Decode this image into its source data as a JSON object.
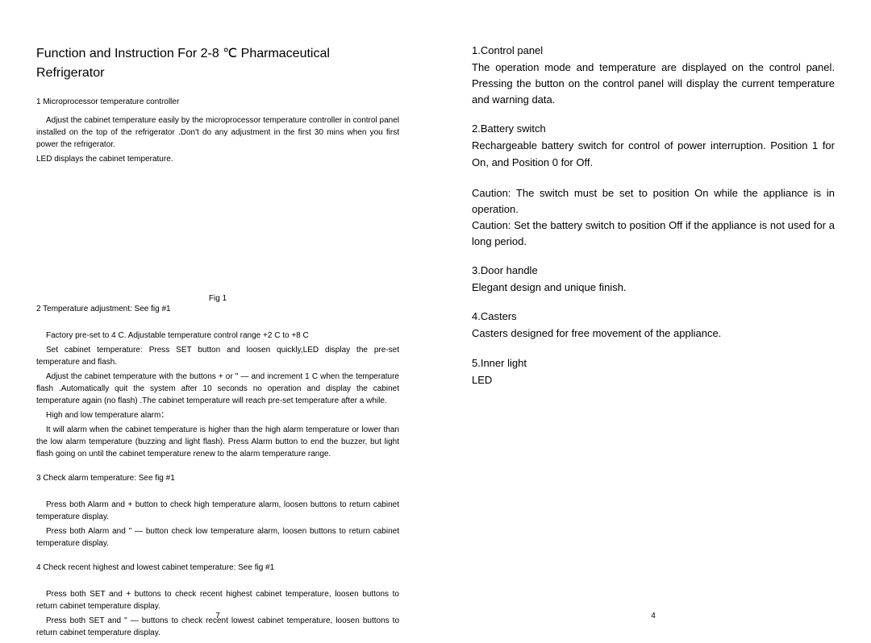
{
  "left": {
    "title": "Function and Instruction For 2-8 ℃ Pharmaceutical Refrigerator",
    "s1_heading": "1 Microprocessor temperature controller",
    "s1_p1": "Adjust the cabinet temperature easily by the microprocessor temperature controller in control panel installed on the top of the refrigerator .Don't do any adjustment in the first 30 mins when you first power the refrigerator.",
    "s1_p2": "LED displays the cabinet temperature.",
    "fig_caption": "Fig 1",
    "s2_heading": "2 Temperature adjustment: See fig #1",
    "s2_p1": "Factory pre-set to 4 C. Adjustable temperature control range +2 C to +8 C",
    "s2_p2": "Set cabinet temperature: Press SET button and loosen quickly,LED display the pre-set temperature and flash.",
    "s2_p3": "Adjust the cabinet temperature with the buttons + or \" — and increment 1 C when the temperature flash .Automatically quit the system after 10 seconds no operation and display the cabinet temperature again (no flash) .The cabinet temperature will reach pre-set temperature after a while.",
    "s2_p4": "High and low temperature alarm：",
    "s2_p5": "It will alarm when the cabinet temperature is higher than the high alarm temperature or lower than the low alarm temperature (buzzing and light flash). Press Alarm button to end the buzzer, but light flash going on until the cabinet temperature renew to the alarm temperature range.",
    "s3_heading": "3 Check alarm temperature: See fig #1",
    "s3_p1": "Press both Alarm and + button to check high temperature alarm, loosen buttons to return cabinet temperature display.",
    "s3_p2": "Press both Alarm and \" — button check low temperature alarm, loosen buttons to return cabinet temperature display.",
    "s4_heading": "4 Check recent highest and lowest cabinet temperature: See fig #1",
    "s4_p1": "Press both SET and + buttons to check recent highest cabinet temperature, loosen buttons to return cabinet temperature display.",
    "s4_p2": "Press both SET and \" — buttons to check recent lowest cabinet temperature, loosen buttons to return cabinet temperature display.",
    "page_num": "7"
  },
  "right": {
    "i1_h": "1.Control panel",
    "i1_p": "The operation mode and temperature are displayed on the control panel. Pressing the button on the control panel will display the current temperature and warning data.",
    "i2_h": "2.Battery switch",
    "i2_p": "Rechargeable battery switch for control of power interruption. Position 1 for On, and Position 0 for Off.",
    "caution_label": "Caution:",
    "c1": " The switch must be set to position On while the appliance is in operation.",
    "c2": " Set the battery switch to position Off if the appliance is not used for a long period.",
    "i3_h": "3.Door handle",
    "i3_p": "Elegant design and unique finish.",
    "i4_h": "4.Casters",
    "i4_p": "Casters designed for free movement of the appliance.",
    "i5_h": "5.Inner light",
    "i5_p": "LED",
    "page_num": "4"
  }
}
